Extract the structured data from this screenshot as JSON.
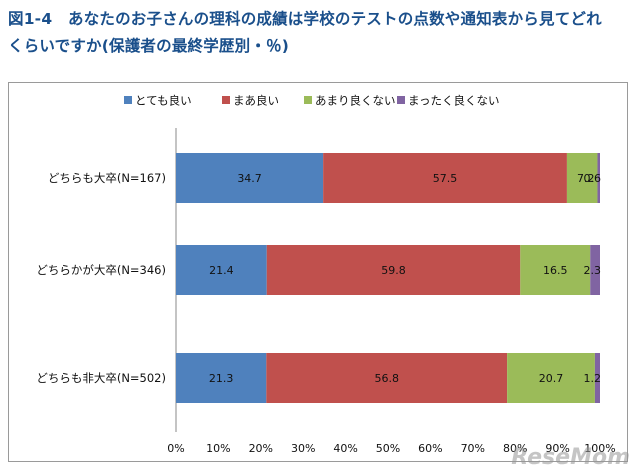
{
  "title_line1": "図1-4　あなたのお子さんの理科の成績は学校のテストの点数や通知表から見てどれ",
  "title_line2": "くらいですか(保護者の最終学歴別・％)",
  "watermark": "ReseMom",
  "chart_data": {
    "type": "bar",
    "orientation": "horizontal",
    "stacked": true,
    "categories": [
      "どちらも大卒(N=167)",
      "どちらかが大卒(N=346)",
      "どちらも非大卒(N=502)"
    ],
    "series": [
      {
        "name": "とても良い",
        "color": "#4f81bd",
        "values": [
          34.7,
          21.4,
          21.3
        ]
      },
      {
        "name": "まあ良い",
        "color": "#c0504d",
        "values": [
          57.5,
          59.8,
          56.8
        ]
      },
      {
        "name": "あまり良くない",
        "color": "#9bbb59",
        "values": [
          7.2,
          16.5,
          20.7
        ]
      },
      {
        "name": "まったく良くない",
        "color": "#8064a2",
        "values": [
          0.6,
          2.3,
          1.2
        ]
      }
    ],
    "value_labels": [
      [
        "34.7",
        "57.5",
        "7.2",
        "0.6"
      ],
      [
        "21.4",
        "59.8",
        "16.5",
        "2.3"
      ],
      [
        "21.3",
        "56.8",
        "20.7",
        "1.2"
      ]
    ],
    "xlim": [
      0,
      100
    ],
    "xticks": [
      "0%",
      "10%",
      "20%",
      "30%",
      "40%",
      "50%",
      "60%",
      "70%",
      "80%",
      "90%",
      "100%"
    ],
    "legend_position": "top",
    "grid": false
  }
}
